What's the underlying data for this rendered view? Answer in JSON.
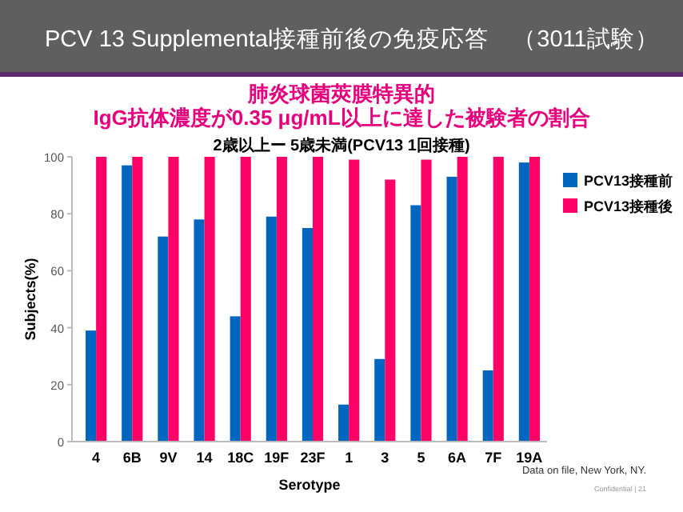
{
  "chart_data": {
    "type": "bar",
    "title": "PCV 13 Supplemental接種前後の免疫応答　（3011試験）",
    "subtitle": "肺炎球菌莢膜特異的\nIgG抗体濃度が0.35 μg/mL以上に達した被験者の割合",
    "annotations": [
      "2歳以上ー 5歳未満(PCV13  1回接種)",
      "Data on file, New York, NY.",
      "Confidential | 21"
    ],
    "categories": [
      "4",
      "6B",
      "9V",
      "14",
      "18C",
      "19F",
      "23F",
      "1",
      "3",
      "5",
      "6A",
      "7F",
      "19A"
    ],
    "series": [
      {
        "name": "PCV13接種前",
        "color": "#0066c0",
        "values": [
          39,
          97,
          72,
          78,
          44,
          79,
          75,
          13,
          29,
          83,
          93,
          25,
          98
        ]
      },
      {
        "name": "PCV13接種後",
        "color": "#ff0066",
        "values": [
          100,
          100,
          100,
          100,
          100,
          100,
          100,
          99,
          92,
          99,
          100,
          100,
          100
        ]
      }
    ],
    "xlabel": "Serotype",
    "ylabel": "Subjects(%)",
    "ylim": [
      0,
      100
    ],
    "yticks": [
      0,
      20,
      40,
      60,
      80,
      100
    ],
    "grid": false,
    "legend": "right"
  }
}
